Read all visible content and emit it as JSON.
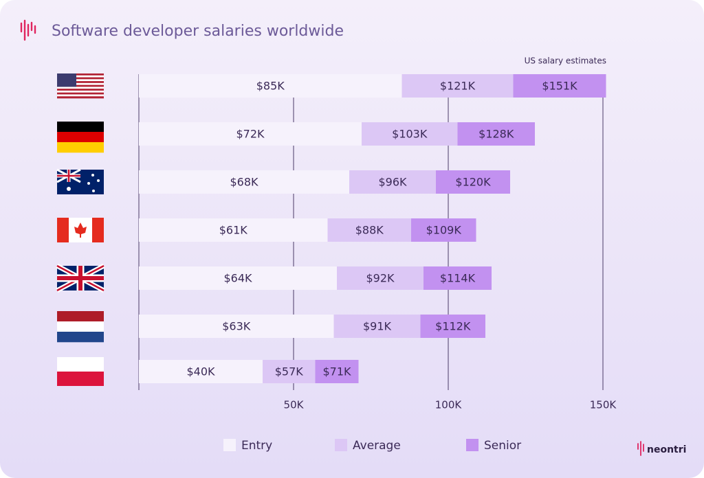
{
  "chart_data": {
    "type": "overlap-bar",
    "title": "Software developer salaries worldwide",
    "annotation": "US salary estimates",
    "brand": "neontri",
    "categories": [
      null,
      null,
      null,
      null,
      null,
      null,
      null
    ],
    "series": [
      {
        "name": "Entry",
        "color": "#f6f2fc",
        "values": [
          85,
          72,
          68,
          61,
          64,
          63,
          40
        ],
        "value_labels": [
          "$85K",
          "$72K",
          "$68K",
          "$61K",
          "$64K",
          "$63K",
          "$40K"
        ]
      },
      {
        "name": "Average",
        "color": "#dcc7f5",
        "values": [
          121,
          103,
          96,
          88,
          92,
          91,
          57
        ],
        "value_labels": [
          "$121K",
          "$103K",
          "$96K",
          "$88K",
          "$92K",
          "$91K",
          "$57K"
        ]
      },
      {
        "name": "Senior",
        "color": "#c291f0",
        "values": [
          151,
          128,
          120,
          109,
          114,
          112,
          71
        ],
        "value_labels": [
          "$151K",
          "$128K",
          "$120K",
          "$109K",
          "$114K",
          "$112K",
          "$71K"
        ]
      }
    ],
    "xlim": [
      0,
      150
    ],
    "xticks": [
      {
        "value": 50,
        "label": "50K"
      },
      {
        "value": 100,
        "label": "100K"
      },
      {
        "value": 150,
        "label": "150K"
      }
    ],
    "grid": true
  }
}
